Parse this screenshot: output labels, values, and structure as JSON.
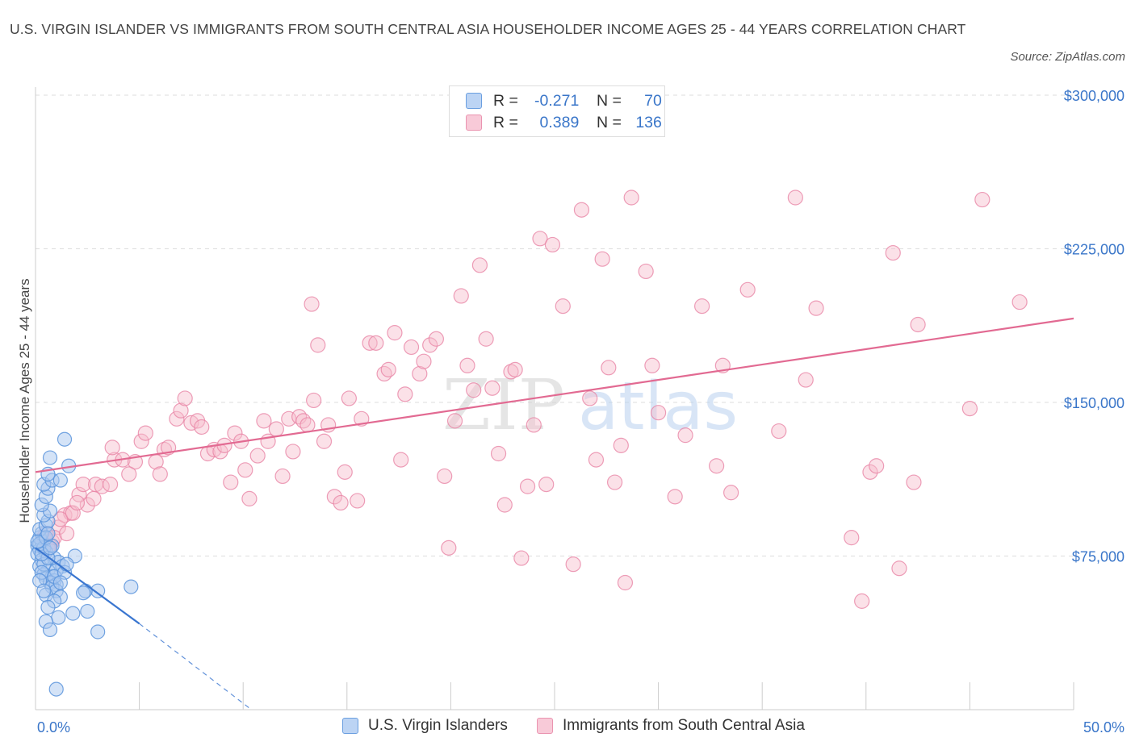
{
  "title": "U.S. VIRGIN ISLANDER VS IMMIGRANTS FROM SOUTH CENTRAL ASIA HOUSEHOLDER INCOME AGES 25 - 44 YEARS CORRELATION CHART",
  "source": "Source: ZipAtlas.com",
  "watermark": {
    "zip": "ZIP",
    "atlas": "atlas"
  },
  "legend": {
    "series1": {
      "r_label": "R =",
      "r_value": "-0.271",
      "n_label": "N =",
      "n_value": "70"
    },
    "series2": {
      "r_label": "R =",
      "r_value": "0.389",
      "n_label": "N =",
      "n_value": "136"
    }
  },
  "colors": {
    "blue_fill": "#aac8f0",
    "blue_stroke": "#5b94dc",
    "blue_line": "#3a76d0",
    "pink_fill": "#f6bccd",
    "pink_stroke": "#e886a6",
    "pink_line": "#e26a92",
    "tick_text": "#3a76c9",
    "grid": "#dddddd"
  },
  "chart_data": {
    "type": "scatter",
    "title": "U.S. VIRGIN ISLANDER VS IMMIGRANTS FROM SOUTH CENTRAL ASIA HOUSEHOLDER INCOME AGES 25 - 44 YEARS CORRELATION CHART",
    "xlabel": "",
    "ylabel": "Householder Income Ages 25 - 44 years",
    "xlim": [
      0,
      50
    ],
    "ylim": [
      0,
      300000
    ],
    "x_tick_labels": [
      {
        "value": 0,
        "label": "0.0%"
      },
      {
        "value": 50,
        "label": "50.0%"
      }
    ],
    "y_tick_labels": [
      {
        "value": 75000,
        "label": "$75,000"
      },
      {
        "value": 150000,
        "label": "$150,000"
      },
      {
        "value": 225000,
        "label": "$225,000"
      },
      {
        "value": 300000,
        "label": "$300,000"
      }
    ],
    "grid": true,
    "series": [
      {
        "name": "U.S. Virgin Islanders",
        "R": -0.271,
        "N": 70,
        "trend": {
          "x_start": 0,
          "y_start": 79000,
          "x_solid_end": 5,
          "y_solid_end": 42000,
          "x_dash_end": 10.4,
          "y_dash_end": 0
        },
        "points": [
          [
            0.1,
            80000
          ],
          [
            0.2,
            78000
          ],
          [
            0.1,
            76000
          ],
          [
            0.3,
            82000
          ],
          [
            0.2,
            84000
          ],
          [
            0.4,
            79000
          ],
          [
            0.5,
            77000
          ],
          [
            0.3,
            73000
          ],
          [
            0.2,
            70000
          ],
          [
            0.6,
            68000
          ],
          [
            0.4,
            66000
          ],
          [
            0.8,
            65000
          ],
          [
            0.5,
            64000
          ],
          [
            0.9,
            63000
          ],
          [
            0.7,
            62000
          ],
          [
            1.0,
            61000
          ],
          [
            0.3,
            86000
          ],
          [
            0.2,
            88000
          ],
          [
            0.5,
            90000
          ],
          [
            0.6,
            92000
          ],
          [
            0.4,
            95000
          ],
          [
            0.7,
            97000
          ],
          [
            0.3,
            100000
          ],
          [
            0.5,
            104000
          ],
          [
            0.6,
            108000
          ],
          [
            0.4,
            110000
          ],
          [
            0.8,
            112000
          ],
          [
            0.6,
            115000
          ],
          [
            1.6,
            119000
          ],
          [
            0.7,
            123000
          ],
          [
            1.4,
            132000
          ],
          [
            1.2,
            112000
          ],
          [
            0.9,
            74000
          ],
          [
            1.1,
            72000
          ],
          [
            1.3,
            70000
          ],
          [
            1.9,
            75000
          ],
          [
            0.8,
            60000
          ],
          [
            1.0,
            58000
          ],
          [
            0.5,
            56000
          ],
          [
            1.2,
            55000
          ],
          [
            0.9,
            53000
          ],
          [
            0.6,
            50000
          ],
          [
            1.8,
            47000
          ],
          [
            1.1,
            45000
          ],
          [
            0.5,
            43000
          ],
          [
            0.7,
            39000
          ],
          [
            2.5,
            48000
          ],
          [
            3.0,
            58000
          ],
          [
            2.4,
            58000
          ],
          [
            2.3,
            57000
          ],
          [
            3.0,
            38000
          ],
          [
            4.6,
            60000
          ],
          [
            1.0,
            10000
          ],
          [
            0.2,
            81000
          ],
          [
            0.4,
            71000
          ],
          [
            0.3,
            67000
          ],
          [
            0.8,
            80000
          ],
          [
            1.0,
            68000
          ],
          [
            0.6,
            74000
          ],
          [
            0.2,
            63000
          ],
          [
            0.9,
            65000
          ],
          [
            1.4,
            67000
          ],
          [
            0.5,
            84000
          ],
          [
            0.3,
            76000
          ],
          [
            0.7,
            79000
          ],
          [
            1.2,
            62000
          ],
          [
            0.4,
            58000
          ],
          [
            1.5,
            71000
          ],
          [
            0.1,
            82000
          ],
          [
            0.6,
            86000
          ]
        ]
      },
      {
        "name": "Immigrants from South Central Asia",
        "R": 0.389,
        "N": 136,
        "trend": {
          "x_start": 0,
          "y_start": 116000,
          "x_end": 50,
          "y_end": 191000
        },
        "points": [
          [
            0.4,
            84000
          ],
          [
            0.8,
            82000
          ],
          [
            0.5,
            86000
          ],
          [
            1.1,
            89000
          ],
          [
            0.7,
            80000
          ],
          [
            1.4,
            95000
          ],
          [
            1.7,
            96000
          ],
          [
            1.2,
            93000
          ],
          [
            0.9,
            84000
          ],
          [
            1.8,
            96000
          ],
          [
            2.5,
            100000
          ],
          [
            2.8,
            103000
          ],
          [
            2.1,
            105000
          ],
          [
            2.3,
            110000
          ],
          [
            2.9,
            110000
          ],
          [
            3.2,
            109000
          ],
          [
            3.6,
            110000
          ],
          [
            3.8,
            122000
          ],
          [
            4.2,
            122000
          ],
          [
            3.7,
            128000
          ],
          [
            4.8,
            121000
          ],
          [
            4.5,
            115000
          ],
          [
            5.1,
            131000
          ],
          [
            5.3,
            135000
          ],
          [
            5.8,
            121000
          ],
          [
            6.0,
            115000
          ],
          [
            6.2,
            127000
          ],
          [
            6.4,
            128000
          ],
          [
            6.8,
            142000
          ],
          [
            7.0,
            146000
          ],
          [
            7.2,
            152000
          ],
          [
            7.5,
            140000
          ],
          [
            7.8,
            141000
          ],
          [
            8.0,
            138000
          ],
          [
            8.3,
            125000
          ],
          [
            8.6,
            127000
          ],
          [
            8.9,
            126000
          ],
          [
            9.1,
            129000
          ],
          [
            9.4,
            111000
          ],
          [
            9.6,
            135000
          ],
          [
            9.9,
            131000
          ],
          [
            10.1,
            117000
          ],
          [
            10.3,
            103000
          ],
          [
            10.7,
            124000
          ],
          [
            11.0,
            141000
          ],
          [
            11.2,
            131000
          ],
          [
            11.6,
            137000
          ],
          [
            11.9,
            114000
          ],
          [
            12.2,
            142000
          ],
          [
            12.4,
            126000
          ],
          [
            12.7,
            143000
          ],
          [
            12.9,
            141000
          ],
          [
            13.1,
            139000
          ],
          [
            13.3,
            198000
          ],
          [
            13.4,
            151000
          ],
          [
            13.6,
            178000
          ],
          [
            13.9,
            131000
          ],
          [
            14.1,
            139000
          ],
          [
            14.4,
            104000
          ],
          [
            14.7,
            101000
          ],
          [
            14.9,
            116000
          ],
          [
            15.1,
            152000
          ],
          [
            15.5,
            102000
          ],
          [
            15.7,
            142000
          ],
          [
            16.1,
            179000
          ],
          [
            16.4,
            179000
          ],
          [
            16.8,
            164000
          ],
          [
            17.0,
            166000
          ],
          [
            17.3,
            184000
          ],
          [
            17.6,
            122000
          ],
          [
            17.8,
            154000
          ],
          [
            18.1,
            177000
          ],
          [
            18.5,
            164000
          ],
          [
            18.7,
            170000
          ],
          [
            19.0,
            178000
          ],
          [
            19.3,
            181000
          ],
          [
            19.7,
            114000
          ],
          [
            19.9,
            79000
          ],
          [
            20.2,
            141000
          ],
          [
            20.5,
            202000
          ],
          [
            20.8,
            168000
          ],
          [
            21.1,
            156000
          ],
          [
            21.4,
            217000
          ],
          [
            21.7,
            181000
          ],
          [
            22.0,
            157000
          ],
          [
            22.3,
            125000
          ],
          [
            22.6,
            100000
          ],
          [
            22.9,
            165000
          ],
          [
            23.1,
            166000
          ],
          [
            23.4,
            74000
          ],
          [
            23.7,
            109000
          ],
          [
            24.0,
            139000
          ],
          [
            24.3,
            230000
          ],
          [
            24.6,
            110000
          ],
          [
            24.9,
            227000
          ],
          [
            25.4,
            197000
          ],
          [
            25.9,
            71000
          ],
          [
            26.3,
            244000
          ],
          [
            26.7,
            152000
          ],
          [
            27.0,
            122000
          ],
          [
            27.3,
            220000
          ],
          [
            27.6,
            167000
          ],
          [
            27.9,
            111000
          ],
          [
            28.2,
            129000
          ],
          [
            28.4,
            62000
          ],
          [
            28.7,
            250000
          ],
          [
            29.4,
            214000
          ],
          [
            29.7,
            168000
          ],
          [
            30.0,
            145000
          ],
          [
            30.8,
            104000
          ],
          [
            31.3,
            134000
          ],
          [
            32.1,
            197000
          ],
          [
            32.8,
            119000
          ],
          [
            33.1,
            168000
          ],
          [
            33.5,
            106000
          ],
          [
            34.3,
            205000
          ],
          [
            35.8,
            136000
          ],
          [
            36.6,
            250000
          ],
          [
            37.1,
            161000
          ],
          [
            37.6,
            196000
          ],
          [
            39.3,
            84000
          ],
          [
            39.8,
            53000
          ],
          [
            40.2,
            116000
          ],
          [
            40.5,
            119000
          ],
          [
            41.3,
            223000
          ],
          [
            41.6,
            69000
          ],
          [
            42.5,
            188000
          ],
          [
            42.3,
            111000
          ],
          [
            45.0,
            147000
          ],
          [
            45.6,
            249000
          ],
          [
            47.4,
            199000
          ],
          [
            2.0,
            101000
          ],
          [
            1.5,
            86000
          ],
          [
            0.6,
            79000
          ]
        ]
      }
    ]
  },
  "bottom_legend": {
    "series1_label": "U.S. Virgin Islanders",
    "series2_label": "Immigrants from South Central Asia"
  }
}
